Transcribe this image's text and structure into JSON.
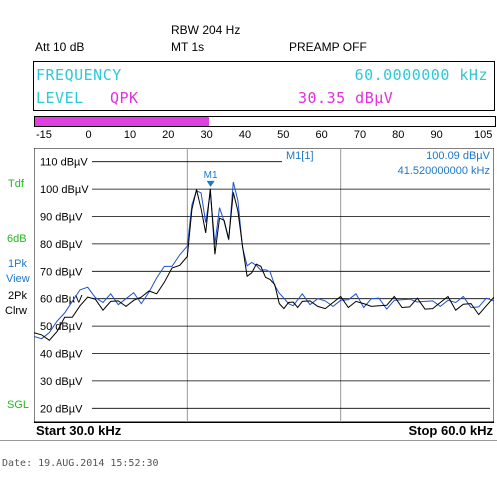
{
  "header": {
    "rbw": "RBW 204 Hz",
    "att": "Att  10 dB",
    "mt": "MT  1s",
    "preamp": "PREAMP OFF"
  },
  "readout": {
    "frequency_label": "FREQUENCY",
    "frequency_value": "60.0000000 kHz",
    "level_label": "LEVEL",
    "detector": "QPK",
    "level_value": "30.35 dBµV"
  },
  "level_bar": {
    "value": 30.35,
    "min": -15,
    "max": 105,
    "ticks": [
      "-15",
      "0",
      "10",
      "20",
      "30",
      "40",
      "50",
      "60",
      "70",
      "80",
      "90",
      "105"
    ]
  },
  "side_labels": {
    "tdf": "Tdf",
    "six_db": "6dB",
    "trace1_a": "1Pk",
    "trace1_b": "View",
    "trace2_a": "2Pk",
    "trace2_b": "Clrw",
    "sgl": "SGL"
  },
  "marker": {
    "label": "M1[1]",
    "level": "100.09 dBµV",
    "freq": "41.520000000 kHz",
    "flag": "M1"
  },
  "footer": {
    "start": "Start 30.0 kHz",
    "stop": "Stop 60.0 kHz",
    "date": "Date: 19.AUG.2014  15:52:30"
  },
  "chart_data": {
    "type": "line",
    "xlim": [
      30.0,
      60.0
    ],
    "ylim": [
      15,
      115
    ],
    "x_unit": "kHz",
    "y_unit": "dBµV",
    "ytick_labels": [
      "110 dBµV",
      "100 dBµV",
      "90 dBµV",
      "80 dBµV",
      "70 dBµV",
      "60 dBµV",
      "50 dBµV",
      "40 dBµV",
      "30 dBµV",
      "20 dBµV"
    ],
    "ytick_values": [
      110,
      100,
      90,
      80,
      70,
      60,
      50,
      40,
      30,
      20
    ],
    "vlines": [
      40.0,
      50.0
    ],
    "series": [
      {
        "color": "#2050d0",
        "x": [
          30.0,
          30.5,
          31.0,
          31.5,
          32.0,
          32.5,
          33.0,
          33.5,
          34.0,
          34.5,
          35.0,
          35.5,
          36.0,
          36.5,
          37.0,
          37.5,
          38.0,
          38.5,
          39.0,
          39.5,
          40.0,
          40.3,
          40.6,
          40.9,
          41.2,
          41.5,
          41.8,
          42.1,
          42.4,
          42.7,
          43.0,
          43.3,
          43.6,
          43.9,
          44.2,
          44.5,
          44.8,
          45.1,
          45.4,
          45.7,
          46.0,
          46.3,
          46.6,
          46.9,
          47.2,
          47.5,
          48.0,
          48.5,
          49.0,
          49.5,
          50.0,
          50.5,
          51.0,
          51.5,
          52.0,
          52.5,
          53.0,
          53.5,
          54.0,
          54.5,
          55.0,
          55.5,
          56.0,
          56.5,
          57.0,
          57.5,
          58.0,
          58.5,
          59.0,
          59.5,
          60.0
        ],
        "y": [
          48,
          46,
          47,
          50,
          56,
          59,
          62,
          66,
          61,
          58,
          60,
          59,
          60,
          61,
          60,
          63,
          67,
          70,
          73,
          76,
          78,
          96,
          100,
          98,
          86,
          100,
          80,
          92,
          90,
          82,
          102,
          94,
          80,
          72,
          72,
          74,
          71,
          70,
          68,
          66,
          62,
          59,
          60,
          58,
          59,
          60,
          59,
          60,
          58,
          59,
          60,
          59,
          60,
          58,
          60,
          59,
          58,
          60,
          59,
          58,
          60,
          59,
          58,
          59,
          60,
          58,
          59,
          58,
          57,
          59,
          61
        ]
      },
      {
        "color": "#000000",
        "x": [
          30.0,
          30.5,
          31.0,
          31.5,
          32.0,
          32.5,
          33.0,
          33.5,
          34.0,
          34.5,
          35.0,
          35.5,
          36.0,
          36.5,
          37.0,
          37.5,
          38.0,
          38.5,
          39.0,
          39.5,
          40.0,
          40.3,
          40.6,
          40.9,
          41.2,
          41.5,
          41.8,
          42.1,
          42.4,
          42.7,
          43.0,
          43.3,
          43.6,
          43.9,
          44.2,
          44.5,
          44.8,
          45.1,
          45.4,
          45.7,
          46.0,
          46.3,
          46.6,
          46.9,
          47.2,
          47.5,
          48.0,
          48.5,
          49.0,
          49.5,
          50.0,
          50.5,
          51.0,
          51.5,
          52.0,
          52.5,
          53.0,
          53.5,
          54.0,
          54.5,
          55.0,
          55.5,
          56.0,
          56.5,
          57.0,
          57.5,
          58.0,
          58.5,
          59.0,
          59.5,
          60.0
        ],
        "y": [
          47,
          45,
          46,
          48,
          52,
          55,
          58,
          60,
          58,
          57,
          59,
          58,
          59,
          60,
          60,
          61,
          63,
          66,
          70,
          74,
          76,
          92,
          98,
          94,
          84,
          99,
          78,
          90,
          88,
          80,
          100,
          92,
          78,
          70,
          70,
          72,
          70,
          69,
          67,
          64,
          60,
          57,
          58,
          57,
          58,
          59,
          58,
          59,
          57,
          58,
          59,
          58,
          59,
          57,
          59,
          58,
          57,
          59,
          58,
          57,
          59,
          58,
          57,
          58,
          59,
          57,
          58,
          57,
          56,
          58,
          60
        ]
      }
    ]
  }
}
